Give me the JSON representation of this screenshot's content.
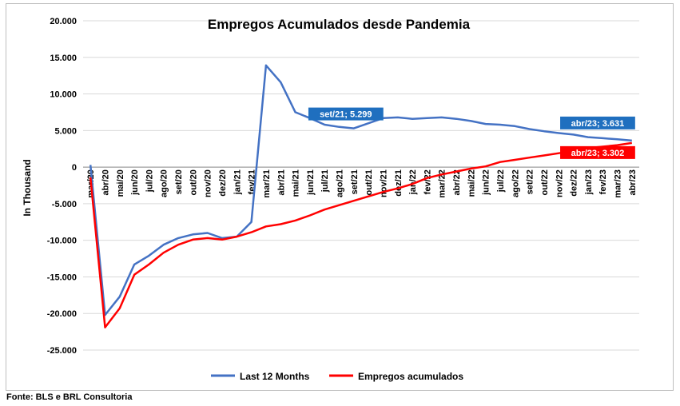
{
  "source_text": "Fonte: BLS e BRL Consultoria",
  "chart_data": {
    "type": "line",
    "title": "Empregos Acumulados desde Pandemia",
    "ylabel": "In Thousand",
    "xlabel": "",
    "ylim": [
      -25000,
      20000
    ],
    "yticks": [
      20000,
      15000,
      10000,
      5000,
      0,
      -5000,
      -10000,
      -15000,
      -20000,
      -25000
    ],
    "ytick_labels": [
      "20.000",
      "15.000",
      "10.000",
      "5.000",
      "0",
      "-5.000",
      "-10.000",
      "-15.000",
      "-20.000",
      "-25.000"
    ],
    "grid": true,
    "legend": "bottom",
    "categories": [
      "mar/20",
      "abr/20",
      "mai/20",
      "jun/20",
      "jul/20",
      "ago/20",
      "set/20",
      "out/20",
      "nov/20",
      "dez/20",
      "jan/21",
      "fev/21",
      "mar/21",
      "abr/21",
      "mai/21",
      "jun/21",
      "jul/21",
      "ago/21",
      "set/21",
      "out/21",
      "nov/21",
      "dez/21",
      "jan/22",
      "fev/22",
      "mar/22",
      "abr/22",
      "mai/22",
      "jun/22",
      "jul/22",
      "ago/22",
      "set/22",
      "out/22",
      "nov/22",
      "dez/22",
      "jan/23",
      "fev/23",
      "mar/23",
      "abr/23"
    ],
    "series": [
      {
        "name": "Last 12 Months",
        "color": "#4472C4",
        "values": [
          300,
          -20200,
          -17700,
          -13300,
          -12100,
          -10600,
          -9700,
          -9200,
          -9000,
          -9700,
          -9500,
          -7500,
          13900,
          11600,
          7500,
          6700,
          5800,
          5500,
          5299,
          6000,
          6700,
          6800,
          6600,
          6700,
          6800,
          6600,
          6300,
          5900,
          5800,
          5600,
          5200,
          4900,
          4650,
          4450,
          4100,
          3950,
          3800,
          3631
        ]
      },
      {
        "name": "Empregos acumulados",
        "color": "#FF0000",
        "values": [
          -1400,
          -21900,
          -19300,
          -14700,
          -13300,
          -11700,
          -10600,
          -9900,
          -9700,
          -9900,
          -9500,
          -8900,
          -8100,
          -7800,
          -7300,
          -6600,
          -5800,
          -5200,
          -4600,
          -4000,
          -3400,
          -2900,
          -2300,
          -1500,
          -1000,
          -600,
          -200,
          100,
          700,
          1000,
          1300,
          1600,
          1900,
          2200,
          2600,
          2800,
          3000,
          3302
        ]
      }
    ],
    "annotations": [
      {
        "series": 0,
        "index": 18,
        "text": "set/21; 5.299",
        "color": "#1F6FBF"
      },
      {
        "series": 0,
        "index": 37,
        "text": "abr/23; 3.631",
        "color": "#1F6FBF"
      },
      {
        "series": 1,
        "index": 37,
        "text": "abr/23; 3.302",
        "color": "#FF0000"
      }
    ]
  }
}
